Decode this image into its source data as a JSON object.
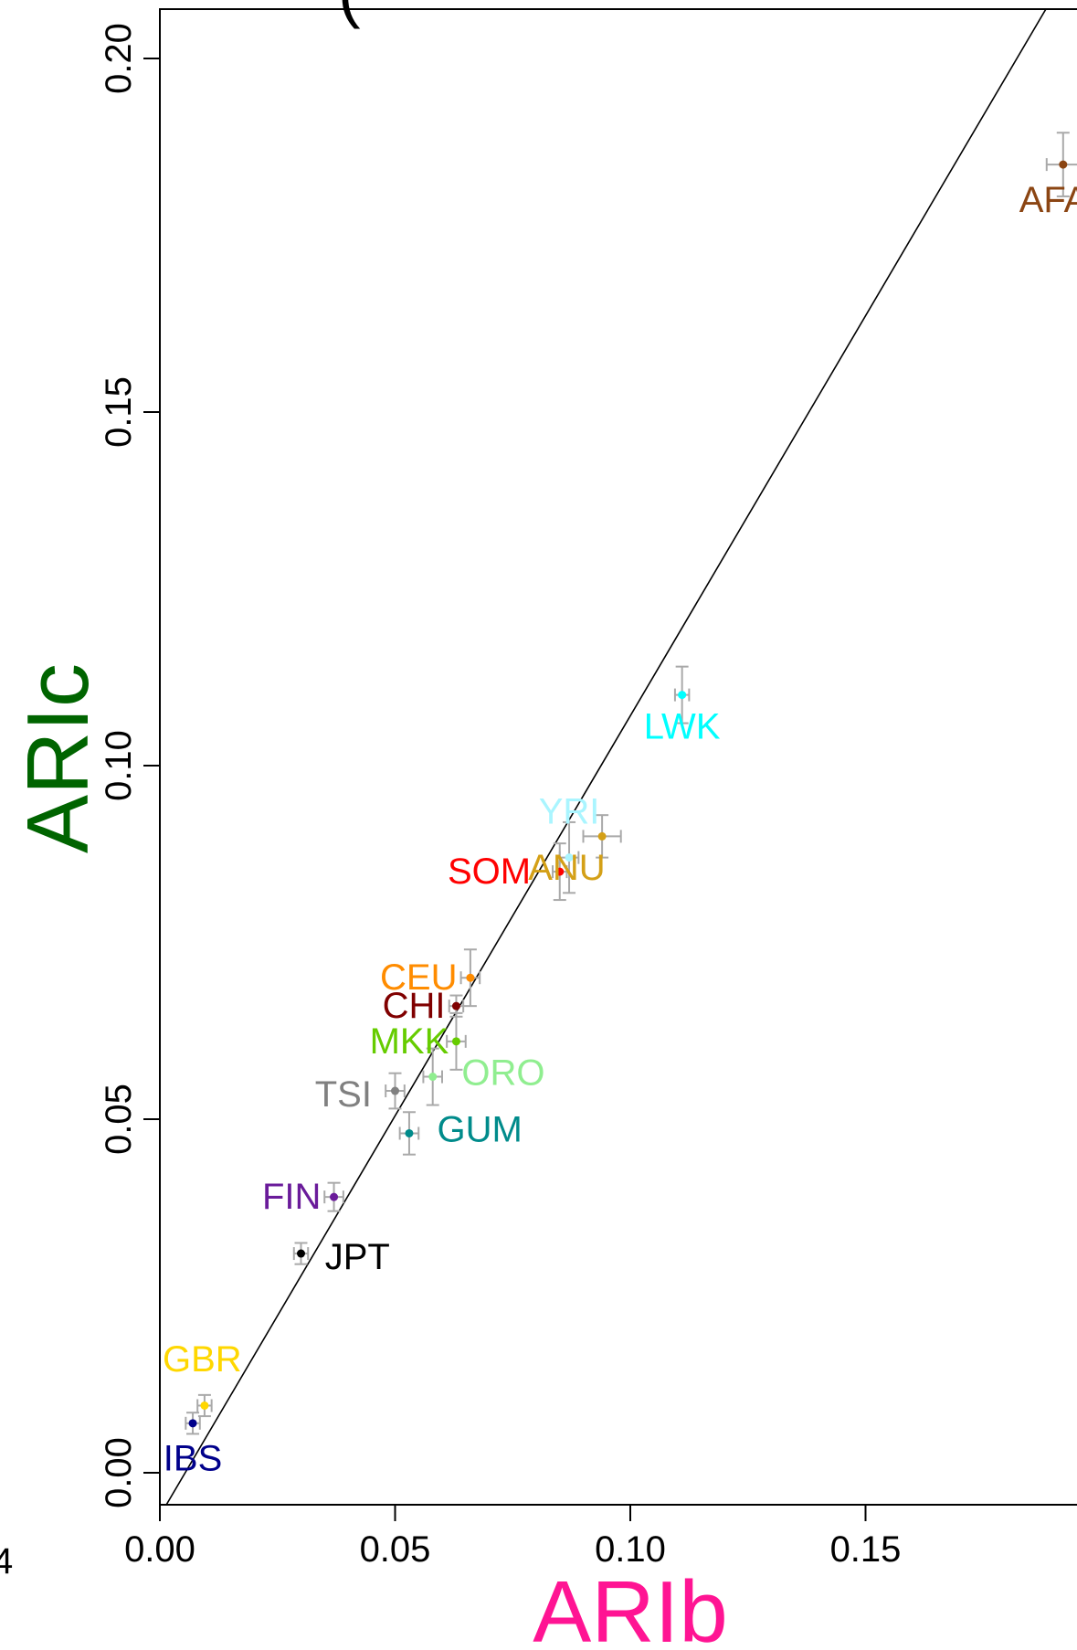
{
  "chart_data": {
    "type": "scatter",
    "title": "",
    "panel_label": "(",
    "xlabel": "ARIb",
    "ylabel": "ARIc",
    "xlabel_color": "#ff1493",
    "ylabel_color": "#006400",
    "xlim": [
      0.0,
      0.195
    ],
    "ylim": [
      -0.005,
      0.208
    ],
    "x_ticks": [
      {
        "value": 0.0,
        "label": "0.00"
      },
      {
        "value": 0.05,
        "label": "0.05"
      },
      {
        "value": 0.1,
        "label": "0.10"
      },
      {
        "value": 0.15,
        "label": "0.15"
      }
    ],
    "y_ticks": [
      {
        "value": 0.0,
        "label": "0.00"
      },
      {
        "value": 0.05,
        "label": "0.05"
      },
      {
        "value": 0.1,
        "label": "0.10"
      },
      {
        "value": 0.15,
        "label": "0.15"
      },
      {
        "value": 0.2,
        "label": "0.20"
      }
    ],
    "clipped_tick_label": "4",
    "grid": false,
    "reference_line": {
      "x1": -0.01,
      "y1": -0.0174,
      "x2": 0.3,
      "y2": 0.3333
    },
    "points": [
      {
        "name": "AFA",
        "x": 0.192,
        "y": 0.185,
        "xerr": 0.0035,
        "yerr": 0.0045,
        "color": "#8b4513",
        "label_dx": -0.002,
        "label_dy": -0.005
      },
      {
        "name": "LWK",
        "x": 0.111,
        "y": 0.11,
        "xerr": 0.0015,
        "yerr": 0.004,
        "color": "#00ffff",
        "label_dx": 0.0,
        "label_dy": -0.0045
      },
      {
        "name": "YRI",
        "x": 0.087,
        "y": 0.087,
        "xerr": 0.002,
        "yerr": 0.005,
        "color": "#aaf5ff",
        "label_dx": 0.0,
        "label_dy": 0.0065
      },
      {
        "name": "ANU",
        "x": 0.094,
        "y": 0.09,
        "xerr": 0.004,
        "yerr": 0.003,
        "color": "#d4a017",
        "label_dx": -0.0075,
        "label_dy": -0.0045
      },
      {
        "name": "SOM",
        "x": 0.085,
        "y": 0.085,
        "xerr": 0.0015,
        "yerr": 0.004,
        "color": "#ff0000",
        "label_dx": -0.015,
        "label_dy": 0.0
      },
      {
        "name": "CEU",
        "x": 0.066,
        "y": 0.07,
        "xerr": 0.002,
        "yerr": 0.004,
        "color": "#ff8c00",
        "label_dx": -0.011,
        "label_dy": 0.0
      },
      {
        "name": "CHI",
        "x": 0.063,
        "y": 0.066,
        "xerr": 0.0015,
        "yerr": 0.0015,
        "color": "#800000",
        "label_dx": -0.009,
        "label_dy": 0.0
      },
      {
        "name": "MKK",
        "x": 0.063,
        "y": 0.061,
        "xerr": 0.002,
        "yerr": 0.004,
        "color": "#66cc00",
        "label_dx": -0.01,
        "label_dy": 0.0
      },
      {
        "name": "ORO",
        "x": 0.058,
        "y": 0.056,
        "xerr": 0.002,
        "yerr": 0.004,
        "color": "#90ee90",
        "label_dx": 0.015,
        "label_dy": 0.0005
      },
      {
        "name": "TSI",
        "x": 0.05,
        "y": 0.054,
        "xerr": 0.002,
        "yerr": 0.0025,
        "color": "#808080",
        "label_dx": -0.011,
        "label_dy": -0.0005
      },
      {
        "name": "GUM",
        "x": 0.053,
        "y": 0.048,
        "xerr": 0.002,
        "yerr": 0.003,
        "color": "#008b8b",
        "label_dx": 0.015,
        "label_dy": 0.0005
      },
      {
        "name": "FIN",
        "x": 0.037,
        "y": 0.039,
        "xerr": 0.002,
        "yerr": 0.002,
        "color": "#6a1b9a",
        "label_dx": -0.009,
        "label_dy": 0.0
      },
      {
        "name": "JPT",
        "x": 0.03,
        "y": 0.031,
        "xerr": 0.0015,
        "yerr": 0.0015,
        "color": "#000000",
        "label_dx": 0.012,
        "label_dy": -0.0005
      },
      {
        "name": "GBR",
        "x": 0.0095,
        "y": 0.0095,
        "xerr": 0.0015,
        "yerr": 0.0015,
        "color": "#ffd700",
        "label_dx": -0.0005,
        "label_dy": 0.0065
      },
      {
        "name": "IBS",
        "x": 0.007,
        "y": 0.007,
        "xerr": 0.0015,
        "yerr": 0.0015,
        "color": "#00008b",
        "label_dx": 0.0,
        "label_dy": -0.005
      }
    ]
  }
}
